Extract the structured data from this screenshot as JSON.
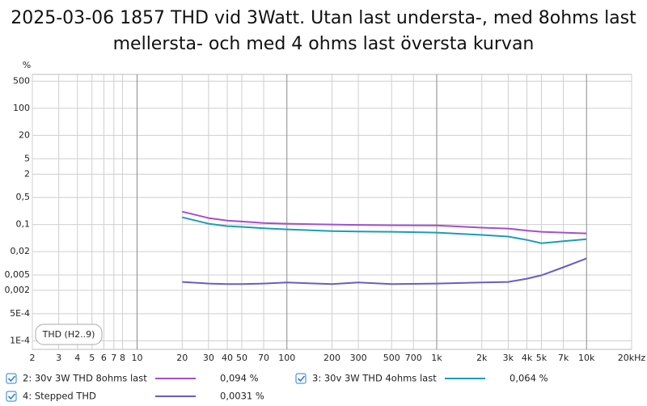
{
  "chart_data": {
    "type": "line",
    "title_lines": [
      "2025-03-06 1857 THD vid 3Watt. Utan last understa-, med 8ohms last",
      "mellersta- och med 4 ohms last översta kurvan"
    ],
    "y_label": "%",
    "annotation": "THD (H2..9)",
    "log_x": true,
    "log_y": true,
    "grid": true,
    "xlim": [
      2,
      20000
    ],
    "ylim": [
      6e-05,
      750
    ],
    "xticks": [
      2,
      3,
      4,
      5,
      6,
      7,
      8,
      10,
      20,
      30,
      40,
      50,
      70,
      100,
      200,
      300,
      500,
      700,
      {
        "value": 1000,
        "label": "1k"
      },
      {
        "value": 2000,
        "label": "2k"
      },
      {
        "value": 3000,
        "label": "3k"
      },
      {
        "value": 4000,
        "label": "4k"
      },
      {
        "value": 5000,
        "label": "5k"
      },
      {
        "value": 7000,
        "label": "7k"
      },
      {
        "value": 10000,
        "label": "10k"
      },
      {
        "value": 20000,
        "label": "20kHz"
      }
    ],
    "yticks": [
      500,
      100,
      20,
      5,
      2,
      {
        "value": 0.5,
        "label": "0,5"
      },
      {
        "value": 0.1,
        "label": "0,1"
      },
      {
        "value": 0.02,
        "label": "0,02"
      },
      {
        "value": 0.005,
        "label": "0,005"
      },
      {
        "value": 0.002,
        "label": "0,002"
      },
      {
        "value": 0.0005,
        "label": "5E-4"
      },
      {
        "value": 0.0001,
        "label": "1E-4"
      }
    ],
    "x": [
      20,
      30,
      40,
      50,
      70,
      100,
      200,
      300,
      500,
      1000,
      2000,
      3000,
      4000,
      5000,
      7000,
      10000
    ],
    "series": [
      {
        "name": "2: 30v 3W THD 8ohms last",
        "color": "#a54fc9",
        "value_label": "0,094 %",
        "values": [
          0.215,
          0.147,
          0.127,
          0.12,
          0.11,
          0.105,
          0.1,
          0.098,
          0.096,
          0.095,
          0.083,
          0.079,
          0.07,
          0.065,
          0.062,
          0.059
        ]
      },
      {
        "name": "3: 30v 3W THD 4ohms last",
        "color": "#1c9db4",
        "value_label": "0,064 %",
        "values": [
          0.154,
          0.105,
          0.091,
          0.087,
          0.08,
          0.075,
          0.068,
          0.066,
          0.065,
          0.062,
          0.054,
          0.049,
          0.04,
          0.033,
          0.037,
          0.042
        ]
      },
      {
        "name": "4: Stepped THD",
        "color": "#6a5cc4",
        "value_label": "0,0031 %",
        "values": [
          0.0033,
          0.003,
          0.0029,
          0.0029,
          0.003,
          0.0032,
          0.0029,
          0.0032,
          0.0029,
          0.003,
          0.0032,
          0.0033,
          0.004,
          0.0049,
          0.0079,
          0.0133
        ]
      }
    ]
  }
}
